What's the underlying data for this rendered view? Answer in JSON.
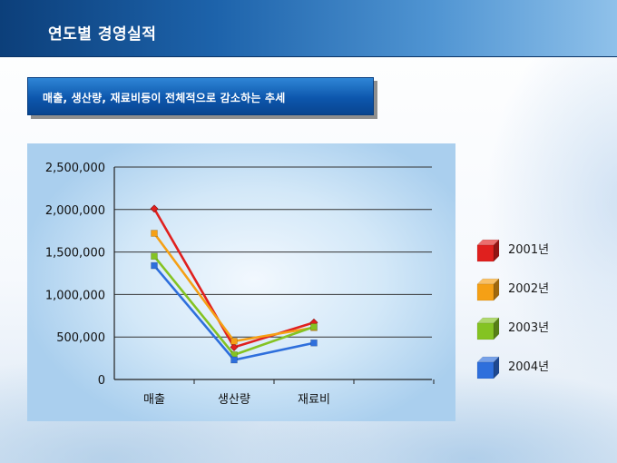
{
  "header": {
    "title": "연도별 경영실적"
  },
  "subtitle": {
    "text": "매출, 생산량, 재료비등이 전체적으로 감소하는 추세"
  },
  "chart_data": {
    "type": "line",
    "categories": [
      "매출",
      "생산량",
      "재료비"
    ],
    "ylim": [
      0,
      2500000
    ],
    "yticks": [
      0,
      500000,
      1000000,
      1500000,
      2000000,
      2500000
    ],
    "ytick_labels": [
      "0",
      "500,000",
      "1,000,000",
      "1,500,000",
      "2,000,000",
      "2,500,000"
    ],
    "grid": true,
    "legend_position": "right",
    "series": [
      {
        "name": "2001년",
        "color": "#e0201e",
        "values": [
          2010000,
          380000,
          670000
        ]
      },
      {
        "name": "2002년",
        "color": "#f5a015",
        "values": [
          1720000,
          450000,
          610000
        ]
      },
      {
        "name": "2003년",
        "color": "#84c322",
        "values": [
          1450000,
          290000,
          620000
        ]
      },
      {
        "name": "2004년",
        "color": "#2e6fdc",
        "values": [
          1340000,
          230000,
          430000
        ]
      }
    ]
  }
}
